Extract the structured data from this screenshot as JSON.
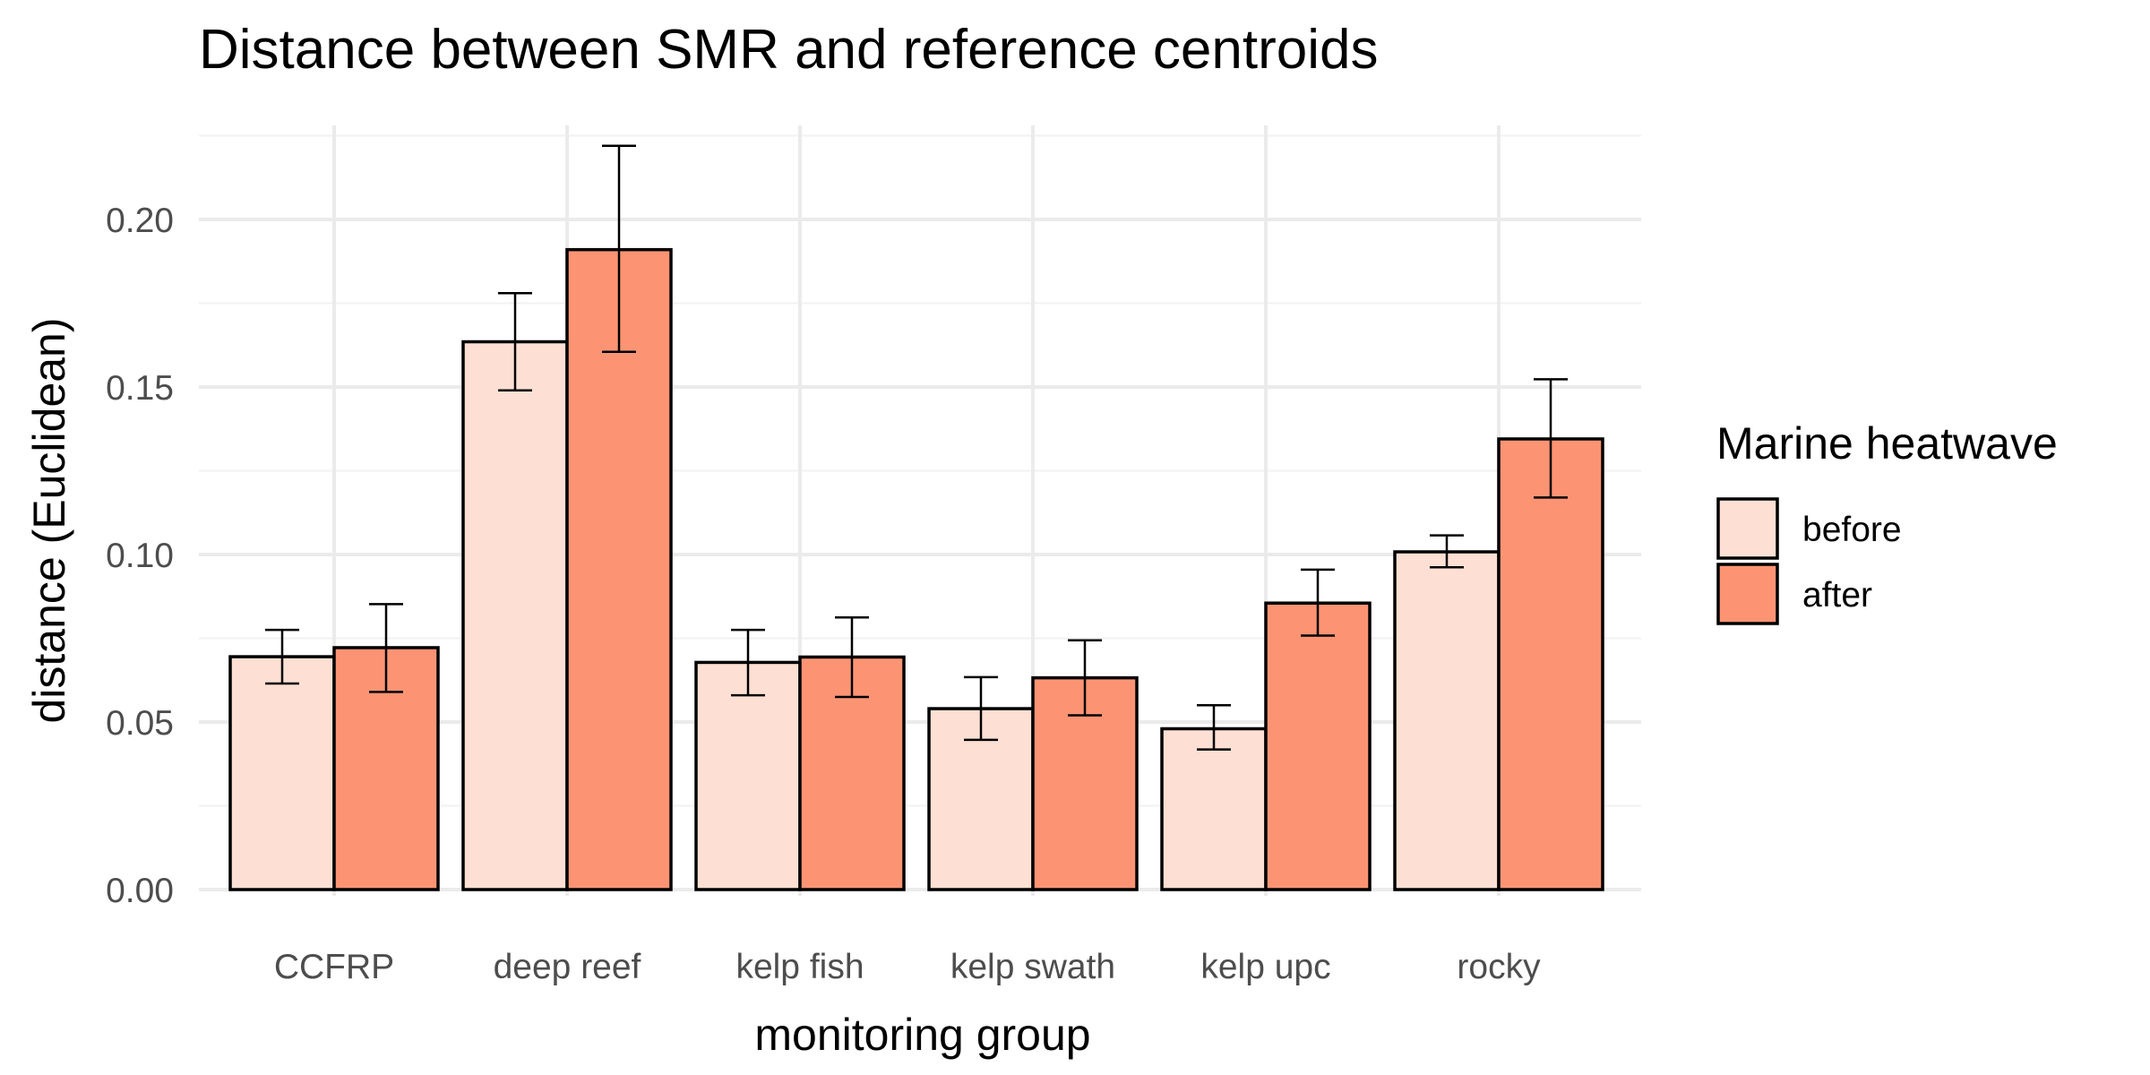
{
  "chart_data": {
    "type": "bar",
    "title": "Distance between SMR and reference centroids",
    "xlabel": "monitoring group",
    "ylabel": "distance (Euclidean)",
    "categories": [
      "CCFRP",
      "deep reef",
      "kelp fish",
      "kelp swath",
      "kelp upc",
      "rocky"
    ],
    "ylim": [
      0,
      0.225
    ],
    "yticks": [
      0.0,
      0.05,
      0.1,
      0.15,
      0.2
    ],
    "ytick_labels": [
      "0.00",
      "0.05",
      "0.10",
      "0.15",
      "0.20"
    ],
    "grid": true,
    "legend": {
      "title": "Marine heatwave",
      "position": "right"
    },
    "series": [
      {
        "name": "before",
        "color": "#fde0d3",
        "values": [
          0.0695,
          0.1635,
          0.0678,
          0.054,
          0.048,
          0.1008
        ],
        "err_low": [
          0.0615,
          0.149,
          0.058,
          0.0447,
          0.0418,
          0.0962
        ],
        "err_high": [
          0.0775,
          0.178,
          0.0775,
          0.0634,
          0.055,
          0.1057
        ]
      },
      {
        "name": "after",
        "color": "#fc9474",
        "values": [
          0.0722,
          0.191,
          0.0694,
          0.0632,
          0.0855,
          0.1345
        ],
        "err_low": [
          0.059,
          0.1605,
          0.0575,
          0.052,
          0.0758,
          0.117
        ],
        "err_high": [
          0.0852,
          0.222,
          0.0812,
          0.0744,
          0.0955,
          0.1523
        ]
      }
    ]
  }
}
